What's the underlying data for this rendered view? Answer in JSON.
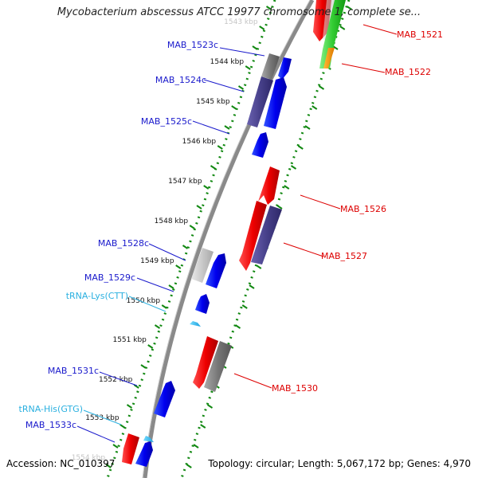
{
  "title": "Mycobacterium abscessus ATCC 19977 chromosome 1, complete se...",
  "accession": "Accession: NC_010397",
  "topology": "Topology: circular; Length: 5,067,172 bp; Genes: 4,970",
  "colors": {
    "backbone": "#8a8a8a",
    "forward_label": "#dd0000",
    "reverse_label": "#1a1acc",
    "rna_label": "#2ab0e0",
    "tick_dots": "#118811",
    "tick_dash": "#118811"
  },
  "ticks": [
    {
      "label": "1543 kbp"
    },
    {
      "label": "1544 kbp"
    },
    {
      "label": "1545 kbp"
    },
    {
      "label": "1546 kbp"
    },
    {
      "label": "1547 kbp"
    },
    {
      "label": "1548 kbp"
    },
    {
      "label": "1549 kbp"
    },
    {
      "label": "1550 kbp"
    },
    {
      "label": "1551 kbp"
    },
    {
      "label": "1552 kbp"
    },
    {
      "label": "1553 kbp"
    },
    {
      "label": "1554 kbp"
    }
  ],
  "genes": [
    {
      "name": "MAB_1521",
      "strand": "forward"
    },
    {
      "name": "MAB_1522",
      "strand": "forward"
    },
    {
      "name": "MAB_1523c",
      "strand": "reverse"
    },
    {
      "name": "MAB_1524c",
      "strand": "reverse"
    },
    {
      "name": "MAB_1525c",
      "strand": "reverse"
    },
    {
      "name": "MAB_1526",
      "strand": "forward"
    },
    {
      "name": "MAB_1527",
      "strand": "forward"
    },
    {
      "name": "MAB_1528c",
      "strand": "reverse"
    },
    {
      "name": "MAB_1529c",
      "strand": "reverse"
    },
    {
      "name": "tRNA-Lys(CTT)",
      "strand": "rna"
    },
    {
      "name": "MAB_1530",
      "strand": "forward"
    },
    {
      "name": "MAB_1531c",
      "strand": "reverse"
    },
    {
      "name": "tRNA-His(GTG)",
      "strand": "rna"
    },
    {
      "name": "MAB_1533c",
      "strand": "reverse"
    }
  ]
}
